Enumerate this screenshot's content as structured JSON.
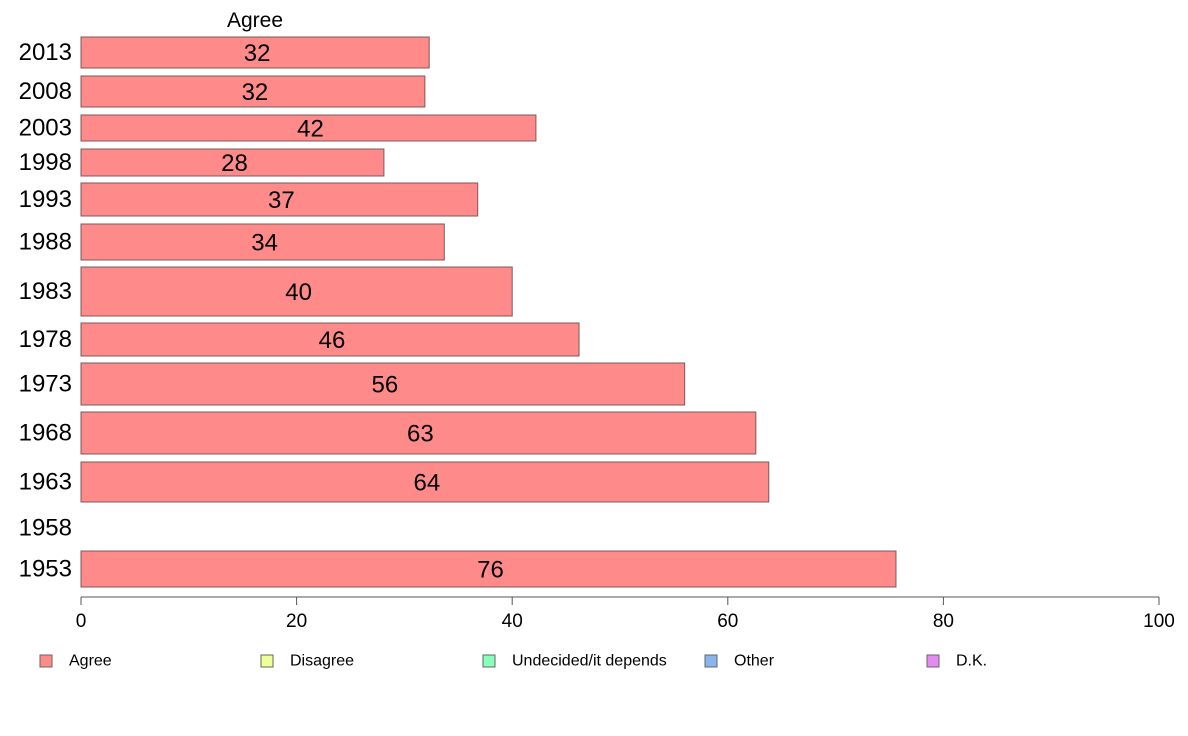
{
  "chart_data": {
    "type": "bar",
    "orientation": "horizontal",
    "header": "Agree",
    "categories": [
      "2013",
      "2008",
      "2003",
      "1998",
      "1993",
      "1988",
      "1983",
      "1978",
      "1973",
      "1968",
      "1963",
      "1958",
      "1953"
    ],
    "series": [
      {
        "name": "Agree",
        "color": "#ff8a8a",
        "values": [
          32,
          32,
          42,
          28,
          37,
          34,
          40,
          46,
          56,
          63,
          64,
          null,
          76
        ],
        "bar_lengths": [
          32.3,
          31.9,
          42.2,
          28.1,
          36.8,
          33.7,
          40.0,
          46.2,
          56.0,
          62.6,
          63.8,
          null,
          75.6
        ]
      }
    ],
    "xlim": [
      0,
      100
    ],
    "xticks": [
      "0",
      "20",
      "40",
      "60",
      "80",
      "100"
    ],
    "legend": [
      {
        "label": "Agree",
        "color": "#ff8a8a"
      },
      {
        "label": "Disagree",
        "color": "#eeff99"
      },
      {
        "label": "Undecided/it depends",
        "color": "#88ffbb"
      },
      {
        "label": "Other",
        "color": "#88b4f0"
      },
      {
        "label": "D.K.",
        "color": "#e58af0"
      }
    ],
    "legend_position": "bottom"
  }
}
